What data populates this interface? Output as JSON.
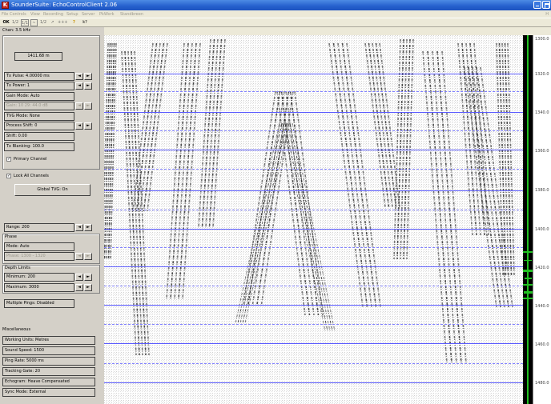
{
  "window": {
    "logo_letter": "K",
    "title": "SounderSuite: EchoControlClient   2.06"
  },
  "menu": {
    "items": [
      "File",
      "Controls",
      "View",
      "Recording",
      "Setup",
      "Server",
      "PkWork",
      "Standbreen"
    ],
    "help": "H"
  },
  "toolbar": {
    "items": [
      "OK",
      "1/2",
      "1/1",
      "~",
      "1/2",
      "↗",
      "+++",
      "?",
      "k?"
    ]
  },
  "left_panel": {
    "channel_label": "Chan: 3.5 kHz",
    "depth_readout": "1411.68 m",
    "tx_pulse": "Tx Pulse: 4.00000 ms",
    "tx_power": "Tx Power: 1",
    "gain_mode": "Gain Mode: Auto",
    "gain": "Gain: 10 29: 44.0 dB",
    "tvg_mode": "TVG Mode: None",
    "process_shift": "Process Shift: 0",
    "shift": "Shift: 0.00",
    "tx_blanking": "Tx Blanking: 100.0",
    "primary_channel": "Primary Channel",
    "lock_all_channels": "Lock All Channels",
    "global_tvg": "Global TVG: On",
    "range": "Range: 200",
    "phase_label": "Phase",
    "phase_mode": "Mode: Auto",
    "phase_value": "Phase: 1300 - 1320",
    "depth_limits_label": "Depth Limits",
    "depth_min": "Minimum: 200",
    "depth_max": "Maximum: 3000",
    "multiple_pings": "Multiple Pings: Disabled",
    "misc_label": "Miscellaneous",
    "working_units": "Working Units: Metres",
    "sound_speed": "Sound Speed: 1500",
    "ping_rate": "Ping Rate: 5000 ms",
    "tracking_gate": "Tracking Gate: 20",
    "echogram_mode": "Echogram: Heave Compensated",
    "sync_mode": "Sync Mode: External"
  },
  "arrows": {
    "left": "◄",
    "right": "►"
  },
  "depth_scale": [
    "1300.0",
    "1320.0",
    "1340.0",
    "1360.0",
    "1380.0",
    "1400.0",
    "1420.0",
    "1440.0",
    "1460.0",
    "1480.0"
  ],
  "colors": {
    "echogram_bg": "#ffffff",
    "ping_lines": "#5a5aff",
    "bottom_trace": "#21c021",
    "title_bar": "#2560cd"
  }
}
